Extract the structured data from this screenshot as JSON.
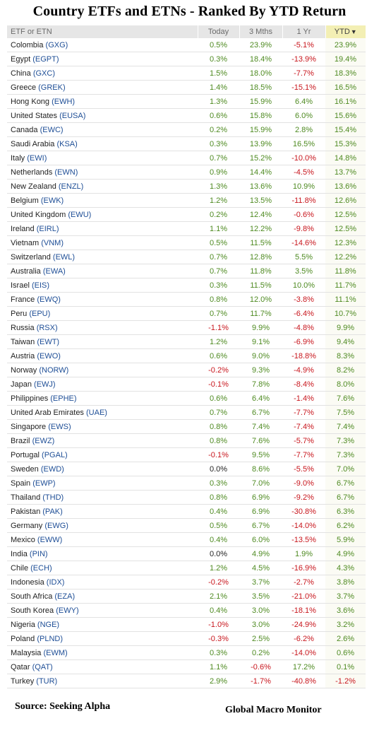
{
  "chart_data": {
    "type": "table",
    "title": "Country ETFs and ETNs - Ranked By YTD Return",
    "columns": [
      "ETF or ETN",
      "Today",
      "3 Mths",
      "1 Yr",
      "YTD"
    ],
    "sort_column": "YTD",
    "sort_direction": "descending",
    "rows": [
      {
        "country": "Colombia",
        "ticker": "(GXG)",
        "today": "0.5%",
        "m3": "23.9%",
        "y1": "-5.1%",
        "ytd": "23.9%"
      },
      {
        "country": "Egypt",
        "ticker": "(EGPT)",
        "today": "0.3%",
        "m3": "18.4%",
        "y1": "-13.9%",
        "ytd": "19.4%"
      },
      {
        "country": "China",
        "ticker": "(GXC)",
        "today": "1.5%",
        "m3": "18.0%",
        "y1": "-7.7%",
        "ytd": "18.3%"
      },
      {
        "country": "Greece",
        "ticker": "(GREK)",
        "today": "1.4%",
        "m3": "18.5%",
        "y1": "-15.1%",
        "ytd": "16.5%"
      },
      {
        "country": "Hong Kong",
        "ticker": "(EWH)",
        "today": "1.3%",
        "m3": "15.9%",
        "y1": "6.4%",
        "ytd": "16.1%"
      },
      {
        "country": "United States",
        "ticker": "(EUSA)",
        "today": "0.6%",
        "m3": "15.8%",
        "y1": "6.0%",
        "ytd": "15.6%"
      },
      {
        "country": "Canada",
        "ticker": "(EWC)",
        "today": "0.2%",
        "m3": "15.9%",
        "y1": "2.8%",
        "ytd": "15.4%"
      },
      {
        "country": "Saudi Arabia",
        "ticker": "(KSA)",
        "today": "0.3%",
        "m3": "13.9%",
        "y1": "16.5%",
        "ytd": "15.3%"
      },
      {
        "country": "Italy",
        "ticker": "(EWI)",
        "today": "0.7%",
        "m3": "15.2%",
        "y1": "-10.0%",
        "ytd": "14.8%"
      },
      {
        "country": "Netherlands",
        "ticker": "(EWN)",
        "today": "0.9%",
        "m3": "14.4%",
        "y1": "-4.5%",
        "ytd": "13.7%"
      },
      {
        "country": "New Zealand",
        "ticker": "(ENZL)",
        "today": "1.3%",
        "m3": "13.6%",
        "y1": "10.9%",
        "ytd": "13.6%"
      },
      {
        "country": "Belgium",
        "ticker": "(EWK)",
        "today": "1.2%",
        "m3": "13.5%",
        "y1": "-11.8%",
        "ytd": "12.6%"
      },
      {
        "country": "United Kingdom",
        "ticker": "(EWU)",
        "today": "0.2%",
        "m3": "12.4%",
        "y1": "-0.6%",
        "ytd": "12.5%"
      },
      {
        "country": "Ireland",
        "ticker": "(EIRL)",
        "today": "1.1%",
        "m3": "12.2%",
        "y1": "-9.8%",
        "ytd": "12.5%"
      },
      {
        "country": "Vietnam",
        "ticker": "(VNM)",
        "today": "0.5%",
        "m3": "11.5%",
        "y1": "-14.6%",
        "ytd": "12.3%"
      },
      {
        "country": "Switzerland",
        "ticker": "(EWL)",
        "today": "0.7%",
        "m3": "12.8%",
        "y1": "5.5%",
        "ytd": "12.2%"
      },
      {
        "country": "Australia",
        "ticker": "(EWA)",
        "today": "0.7%",
        "m3": "11.8%",
        "y1": "3.5%",
        "ytd": "11.8%"
      },
      {
        "country": "Israel",
        "ticker": "(EIS)",
        "today": "0.3%",
        "m3": "11.5%",
        "y1": "10.0%",
        "ytd": "11.7%"
      },
      {
        "country": "France",
        "ticker": "(EWQ)",
        "today": "0.8%",
        "m3": "12.0%",
        "y1": "-3.8%",
        "ytd": "11.1%"
      },
      {
        "country": "Peru",
        "ticker": "(EPU)",
        "today": "0.7%",
        "m3": "11.7%",
        "y1": "-6.4%",
        "ytd": "10.7%"
      },
      {
        "country": "Russia",
        "ticker": "(RSX)",
        "today": "-1.1%",
        "m3": "9.9%",
        "y1": "-4.8%",
        "ytd": "9.9%"
      },
      {
        "country": "Taiwan",
        "ticker": "(EWT)",
        "today": "1.2%",
        "m3": "9.1%",
        "y1": "-6.9%",
        "ytd": "9.4%"
      },
      {
        "country": "Austria",
        "ticker": "(EWO)",
        "today": "0.6%",
        "m3": "9.0%",
        "y1": "-18.8%",
        "ytd": "8.3%"
      },
      {
        "country": "Norway",
        "ticker": "(NORW)",
        "today": "-0.2%",
        "m3": "9.3%",
        "y1": "-4.9%",
        "ytd": "8.2%"
      },
      {
        "country": "Japan",
        "ticker": "(EWJ)",
        "today": "-0.1%",
        "m3": "7.8%",
        "y1": "-8.4%",
        "ytd": "8.0%"
      },
      {
        "country": "Philippines",
        "ticker": "(EPHE)",
        "today": "0.6%",
        "m3": "6.4%",
        "y1": "-1.4%",
        "ytd": "7.6%"
      },
      {
        "country": "United Arab Emirates",
        "ticker": "(UAE)",
        "today": "0.7%",
        "m3": "6.7%",
        "y1": "-7.7%",
        "ytd": "7.5%"
      },
      {
        "country": "Singapore",
        "ticker": "(EWS)",
        "today": "0.8%",
        "m3": "7.4%",
        "y1": "-7.4%",
        "ytd": "7.4%"
      },
      {
        "country": "Brazil",
        "ticker": "(EWZ)",
        "today": "0.8%",
        "m3": "7.6%",
        "y1": "-5.7%",
        "ytd": "7.3%"
      },
      {
        "country": "Portugal",
        "ticker": "(PGAL)",
        "today": "-0.1%",
        "m3": "9.5%",
        "y1": "-7.7%",
        "ytd": "7.3%"
      },
      {
        "country": "Sweden",
        "ticker": "(EWD)",
        "today": "0.0%",
        "m3": "8.6%",
        "y1": "-5.5%",
        "ytd": "7.0%"
      },
      {
        "country": "Spain",
        "ticker": "(EWP)",
        "today": "0.3%",
        "m3": "7.0%",
        "y1": "-9.0%",
        "ytd": "6.7%"
      },
      {
        "country": "Thailand",
        "ticker": "(THD)",
        "today": "0.8%",
        "m3": "6.9%",
        "y1": "-9.2%",
        "ytd": "6.7%"
      },
      {
        "country": "Pakistan",
        "ticker": "(PAK)",
        "today": "0.4%",
        "m3": "6.9%",
        "y1": "-30.8%",
        "ytd": "6.3%"
      },
      {
        "country": "Germany",
        "ticker": "(EWG)",
        "today": "0.5%",
        "m3": "6.7%",
        "y1": "-14.0%",
        "ytd": "6.2%"
      },
      {
        "country": "Mexico",
        "ticker": "(EWW)",
        "today": "0.4%",
        "m3": "6.0%",
        "y1": "-13.5%",
        "ytd": "5.9%"
      },
      {
        "country": "India",
        "ticker": "(PIN)",
        "today": "0.0%",
        "m3": "4.9%",
        "y1": "1.9%",
        "ytd": "4.9%"
      },
      {
        "country": "Chile",
        "ticker": "(ECH)",
        "today": "1.2%",
        "m3": "4.5%",
        "y1": "-16.9%",
        "ytd": "4.3%"
      },
      {
        "country": "Indonesia",
        "ticker": "(IDX)",
        "today": "-0.2%",
        "m3": "3.7%",
        "y1": "-2.7%",
        "ytd": "3.8%"
      },
      {
        "country": "South Africa",
        "ticker": "(EZA)",
        "today": "2.1%",
        "m3": "3.5%",
        "y1": "-21.0%",
        "ytd": "3.7%"
      },
      {
        "country": "South Korea",
        "ticker": "(EWY)",
        "today": "0.4%",
        "m3": "3.0%",
        "y1": "-18.1%",
        "ytd": "3.6%"
      },
      {
        "country": "Nigeria",
        "ticker": "(NGE)",
        "today": "-1.0%",
        "m3": "3.0%",
        "y1": "-24.9%",
        "ytd": "3.2%"
      },
      {
        "country": "Poland",
        "ticker": "(PLND)",
        "today": "-0.3%",
        "m3": "2.5%",
        "y1": "-6.2%",
        "ytd": "2.6%"
      },
      {
        "country": "Malaysia",
        "ticker": "(EWM)",
        "today": "0.3%",
        "m3": "0.2%",
        "y1": "-14.0%",
        "ytd": "0.6%"
      },
      {
        "country": "Qatar",
        "ticker": "(QAT)",
        "today": "1.1%",
        "m3": "-0.6%",
        "y1": "17.2%",
        "ytd": "0.1%"
      },
      {
        "country": "Turkey",
        "ticker": "(TUR)",
        "today": "2.9%",
        "m3": "-1.7%",
        "y1": "-40.8%",
        "ytd": "-1.2%"
      }
    ],
    "source": "Source:  Seeking Alpha",
    "brand": "Global Macro Monitor",
    "colors": {
      "positive": "#4e8a21",
      "negative": "#c8161d",
      "neutral": "#222222",
      "ticker": "#1e4e96",
      "header_bg": "#e6e6e6",
      "sorted_header_bg": "#f3efb4"
    }
  }
}
